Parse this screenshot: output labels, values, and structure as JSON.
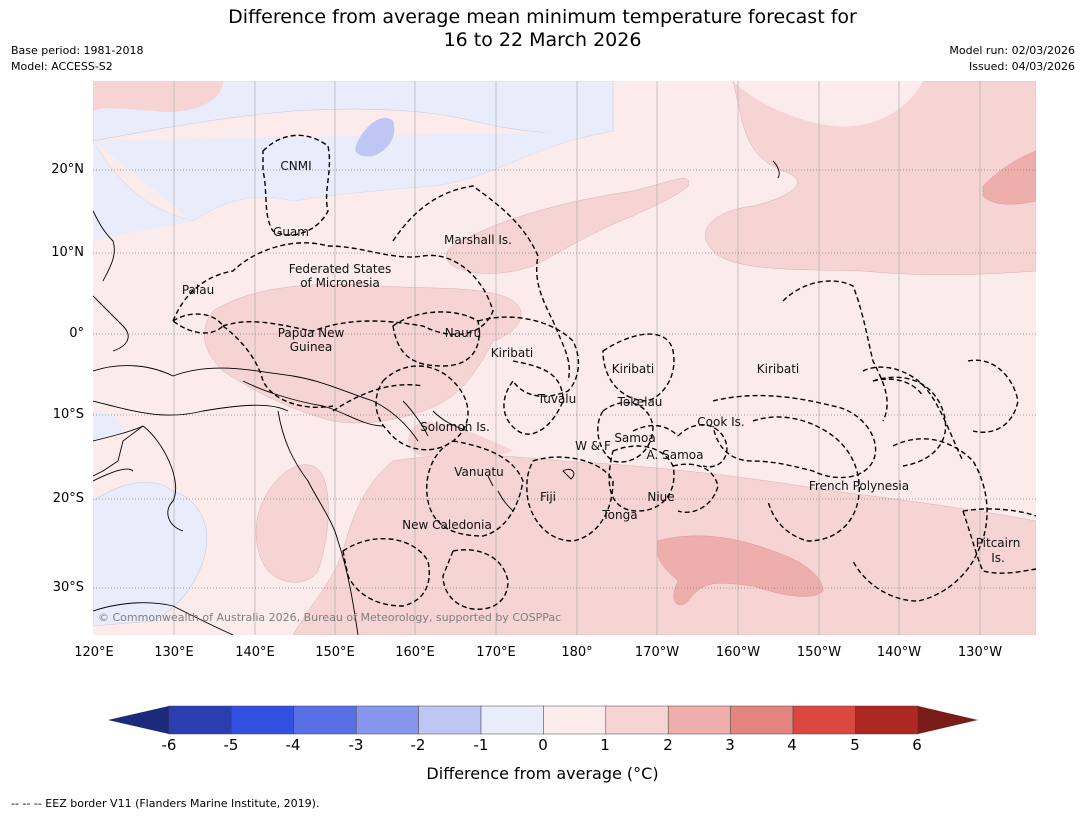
{
  "title_line1": "Difference from average mean minimum temperature forecast for",
  "title_line2": "16 to 22 March 2026",
  "base_period": "Base period: 1981-2018",
  "model": "Model: ACCESS-S2",
  "model_run": "Model run: 02/03/2026",
  "issued": "Issued: 04/03/2026",
  "lat_ticks": [
    "20°N",
    "10°N",
    "0°",
    "10°S",
    "20°S",
    "30°S"
  ],
  "lon_ticks": [
    "120°E",
    "130°E",
    "140°E",
    "150°E",
    "160°E",
    "170°E",
    "180°",
    "170°W",
    "160°W",
    "150°W",
    "140°W",
    "130°W"
  ],
  "region_labels": {
    "cnmi": "CNMI",
    "guam": "Guam",
    "marshall": "Marshall Is.",
    "fsm1": "Federated States",
    "fsm2": "of Micronesia",
    "palau": "Palau",
    "png1": "Papua New",
    "png2": "Guinea",
    "nauru": "Nauru",
    "kiribati_w": "Kiribati",
    "kiribati_c": "Kiribati",
    "kiribati_e": "Kiribati",
    "tuvalu": "Tuvalu",
    "tokelau": "Tokelau",
    "solomon": "Solomon Is.",
    "samoa": "Samoa",
    "wf": "W & F",
    "asamoa": "A. Samoa",
    "cook": "Cook Is.",
    "vanuatu": "Vanuatu",
    "fiji": "Fiji",
    "niue": "Niue",
    "tonga": "Tonga",
    "frpoly": "French Polynesia",
    "newcal": "New Caledonia",
    "pitcairn1": "Pitcairn",
    "pitcairn2": "Is."
  },
  "copyright": "© Commonwealth of Australia 2026, Bureau of Meteorology, supported by COSPPac",
  "colorbar": {
    "ticks": [
      "-6",
      "-5",
      "-4",
      "-3",
      "-2",
      "-1",
      "0",
      "1",
      "2",
      "3",
      "4",
      "5",
      "6"
    ],
    "colors": {
      "below_min": "#1b2a7a",
      "bins": [
        "#2a3eb1",
        "#3150e0",
        "#5870e6",
        "#8796ec",
        "#bec6f4",
        "#e8ecfb",
        "#fbeceb",
        "#f5d4d3",
        "#eeaeab",
        "#e6857f",
        "#da4840",
        "#ad2822"
      ],
      "above_max": "#7b1c18"
    },
    "label": "Difference from average (°C)"
  },
  "footnote": "--  --  -- EEZ border V11 (Flanders Marine Institute, 2019)."
}
